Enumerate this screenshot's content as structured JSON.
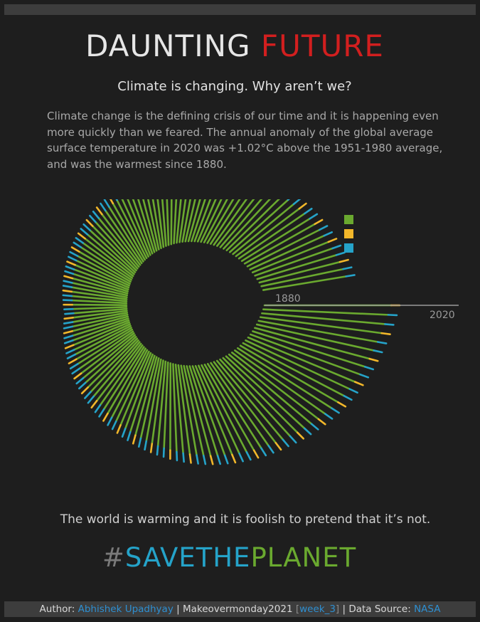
{
  "header": {
    "title_part1": "DAUNTING ",
    "title_part2": "FUTURE",
    "subtitle": "Climate is changing. Why aren’t we?",
    "description": "Climate change is the defining crisis of our time and it is happening even more quickly than we feared. The annual anomaly of the global average surface temperature in 2020 was +1.02°C above the 1951-1980 average, and was the warmest since 1880."
  },
  "colors": {
    "green": "#6aa92f",
    "yellow": "#f2b72a",
    "blue": "#25a3c9",
    "red": "#d21f1f",
    "background": "#1e1e1e"
  },
  "chart_data": {
    "type": "radial-bar",
    "title": "",
    "x_start_label": "1880",
    "x_end_label": "2020",
    "years_start": 1880,
    "years_end": 2020,
    "legend": {
      "placement": "top-right",
      "swatches": [
        "green",
        "yellow",
        "blue"
      ]
    },
    "series": [
      {
        "name": "",
        "values": [
          3.7,
          3.55,
          3.4,
          3.3,
          3.2,
          3.1,
          3.05,
          3.0,
          2.95,
          2.9,
          2.85,
          2.8,
          2.75,
          2.65,
          2.55,
          2.45,
          2.35,
          2.25,
          2.15,
          2.05,
          1.95,
          1.9,
          1.85,
          1.8,
          1.75,
          1.7,
          1.65,
          1.6,
          1.55,
          1.5,
          1.45,
          1.4,
          1.35,
          1.3,
          1.25,
          1.2,
          1.15,
          1.1,
          1.05,
          1.0,
          0.95,
          0.9,
          0.85,
          0.8,
          0.75,
          0.7,
          0.65,
          0.6,
          0.55,
          0.5,
          0.45,
          0.4,
          0.35,
          0.3,
          0.25,
          0.2,
          0.15,
          0.1,
          0.05,
          0.0,
          -0.05,
          -0.1,
          -0.15,
          -0.2,
          -0.25,
          -0.3,
          -0.35,
          -0.4,
          -0.45,
          -0.5,
          -0.55,
          -0.6,
          -0.65,
          -0.7,
          -0.75,
          -0.8,
          -0.85,
          -0.9,
          -0.95,
          -1.0,
          -1.05,
          -1.1,
          -1.15,
          -1.2,
          -1.25,
          -1.3,
          -1.35,
          -1.4,
          -1.45,
          -1.5,
          -1.55,
          -1.6,
          -1.65,
          -1.7,
          -1.75,
          -1.8,
          -1.85,
          -1.9,
          -1.95,
          -2.0,
          -2.05,
          -2.1,
          -2.15,
          -2.2,
          -2.25,
          -2.3,
          -2.35,
          -2.4,
          -2.45,
          -2.5,
          -2.55,
          -2.6,
          -2.65,
          -2.7,
          -2.75,
          -2.8,
          -2.85,
          -2.9,
          -2.95,
          -3.0,
          -3.05,
          -3.1,
          -3.15,
          -3.2,
          -3.25,
          -3.3,
          -3.35,
          -3.4,
          -3.45,
          -3.5,
          -3.55,
          -3.6,
          -3.65,
          -3.7,
          -3.75,
          -3.8,
          -3.85,
          -3.9,
          -3.95,
          -4.0,
          -4.05
        ]
      }
    ]
  },
  "quote": "The world is warming and it is foolish to pretend that it’s not.",
  "hashtag": {
    "hash": "#",
    "save": "SAVETHE",
    "planet": "PLANET"
  },
  "footer": {
    "author_label": "Author: ",
    "author_name": "Abhishek Upadhyay",
    "sep1": " | Makeovermonday2021 ",
    "bracket_open": "[",
    "week_link": "week_3",
    "bracket_close": "]",
    "sep2": " | Data Source: ",
    "source": "NASA"
  }
}
